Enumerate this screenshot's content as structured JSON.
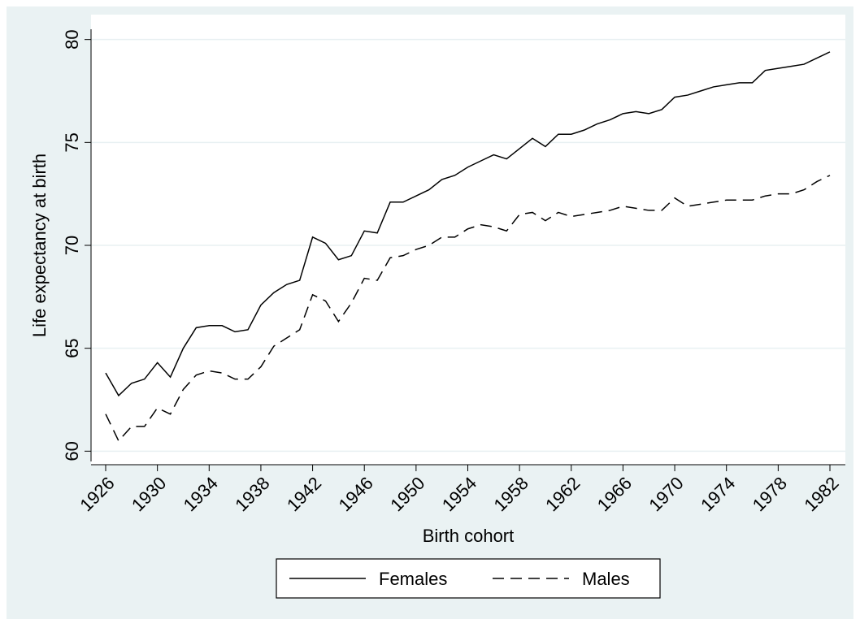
{
  "chart_data": {
    "type": "line",
    "xlabel": "Birth cohort",
    "ylabel": "Life expectancy at birth",
    "x": [
      1926,
      1927,
      1928,
      1929,
      1930,
      1931,
      1932,
      1933,
      1934,
      1935,
      1936,
      1937,
      1938,
      1939,
      1940,
      1941,
      1942,
      1943,
      1944,
      1945,
      1946,
      1947,
      1948,
      1949,
      1950,
      1951,
      1952,
      1953,
      1954,
      1955,
      1956,
      1957,
      1958,
      1959,
      1960,
      1961,
      1962,
      1963,
      1964,
      1965,
      1966,
      1967,
      1968,
      1969,
      1970,
      1971,
      1972,
      1973,
      1974,
      1975,
      1976,
      1977,
      1978,
      1979,
      1980,
      1981,
      1982
    ],
    "series": [
      {
        "name": "Females",
        "color": "#000000",
        "line_style": "solid",
        "values": [
          63.8,
          62.7,
          63.3,
          63.5,
          64.3,
          63.6,
          65.0,
          66.0,
          66.1,
          66.1,
          65.8,
          65.9,
          67.1,
          67.7,
          68.1,
          68.3,
          70.4,
          70.1,
          69.3,
          69.5,
          70.7,
          70.6,
          72.1,
          72.1,
          72.4,
          72.7,
          73.2,
          73.4,
          73.8,
          74.1,
          74.4,
          74.2,
          74.7,
          75.2,
          74.8,
          75.4,
          75.4,
          75.6,
          75.9,
          76.1,
          76.4,
          76.5,
          76.4,
          76.6,
          77.2,
          77.3,
          77.5,
          77.7,
          77.8,
          77.9,
          77.9,
          78.5,
          78.6,
          78.7,
          78.8,
          79.1,
          79.4
        ]
      },
      {
        "name": "Males",
        "color": "#000000",
        "line_style": "dashed",
        "values": [
          61.8,
          60.5,
          61.2,
          61.2,
          62.1,
          61.8,
          63.0,
          63.7,
          63.9,
          63.8,
          63.5,
          63.5,
          64.1,
          65.1,
          65.5,
          65.9,
          67.6,
          67.3,
          66.3,
          67.2,
          68.4,
          68.3,
          69.4,
          69.5,
          69.8,
          70.0,
          70.4,
          70.4,
          70.8,
          71.0,
          70.9,
          70.7,
          71.5,
          71.6,
          71.2,
          71.6,
          71.4,
          71.5,
          71.6,
          71.7,
          71.9,
          71.8,
          71.7,
          71.7,
          72.3,
          71.9,
          72.0,
          72.1,
          72.2,
          72.2,
          72.2,
          72.4,
          72.5,
          72.5,
          72.7,
          73.1,
          73.4
        ]
      }
    ],
    "xlim": [
      1925,
      1983
    ],
    "xticks": [
      1926,
      1930,
      1934,
      1938,
      1942,
      1946,
      1950,
      1954,
      1958,
      1962,
      1966,
      1970,
      1974,
      1978,
      1982
    ],
    "ylim": [
      59.5,
      80.5
    ],
    "yticks": [
      60,
      65,
      70,
      75,
      80
    ],
    "grid": true,
    "legend": "bottom"
  }
}
